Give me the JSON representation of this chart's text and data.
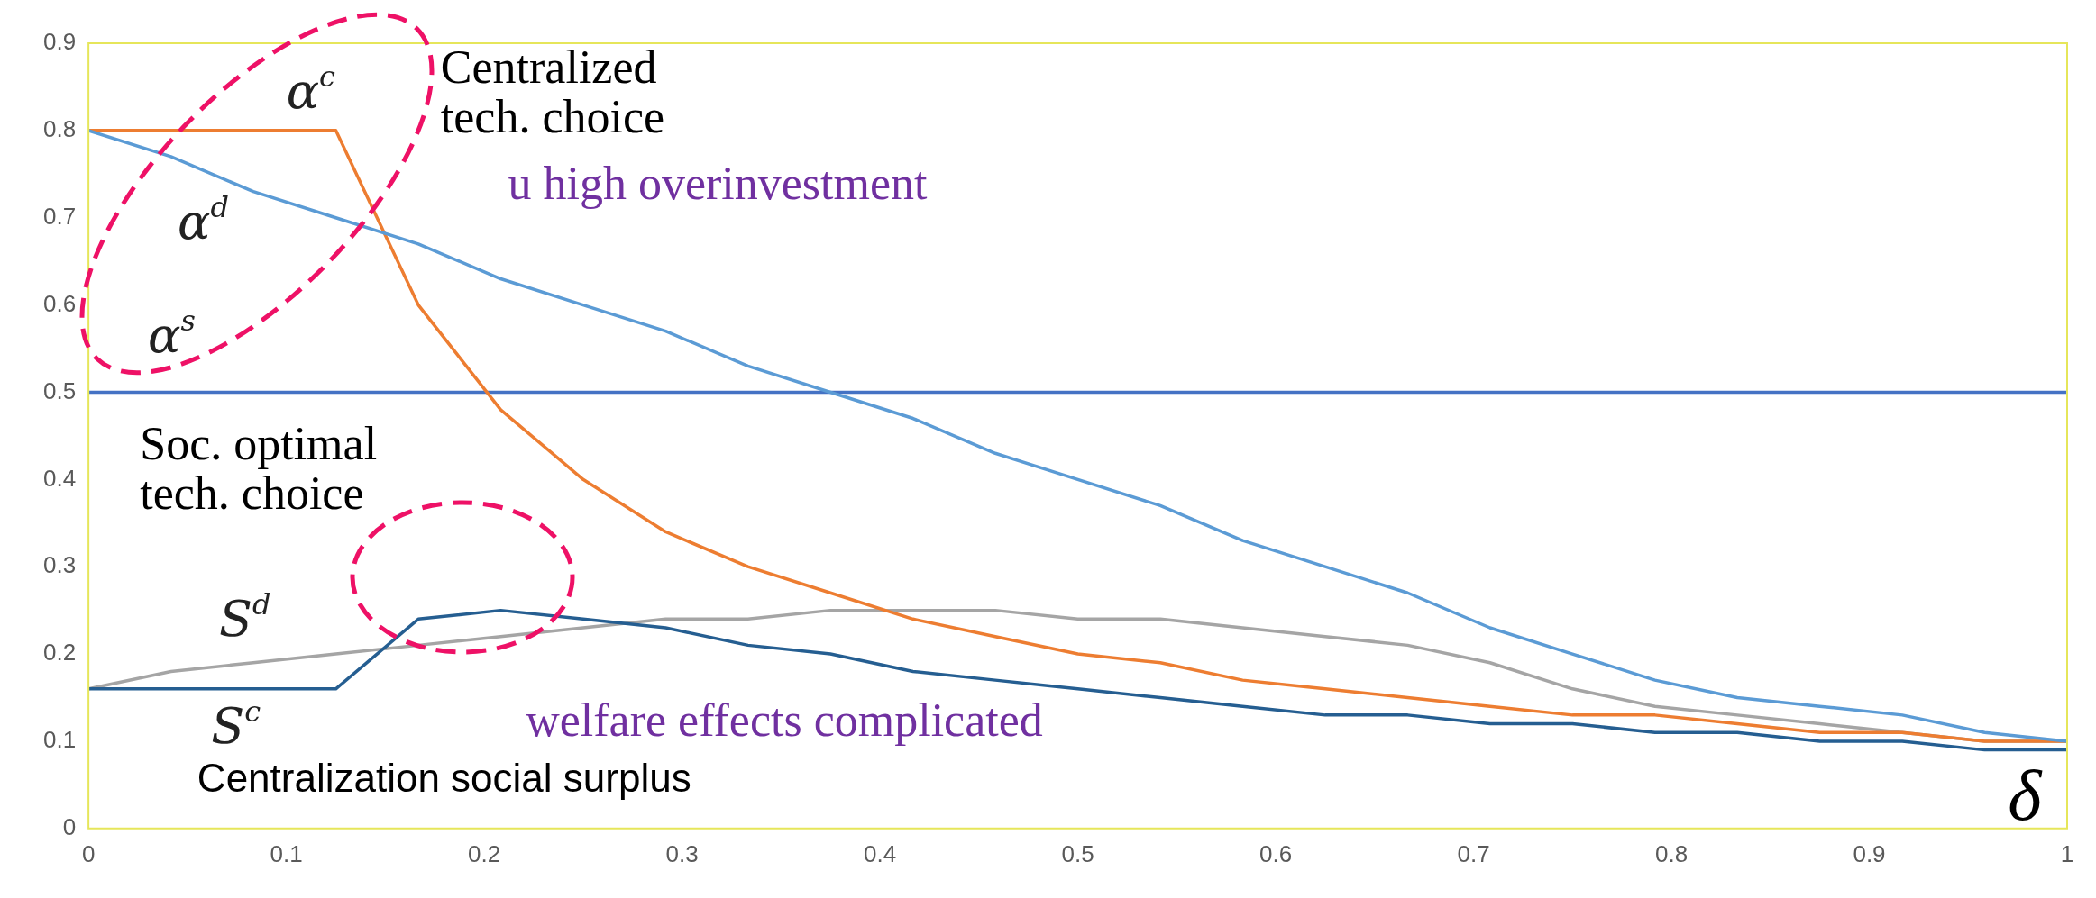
{
  "chart_data": {
    "type": "line",
    "x": [
      0,
      0.0417,
      0.0833,
      0.125,
      0.1667,
      0.2083,
      0.25,
      0.2917,
      0.3333,
      0.375,
      0.4167,
      0.4583,
      0.5,
      0.5417,
      0.5833,
      0.625,
      0.6667,
      0.7083,
      0.75,
      0.7917,
      0.8333,
      0.875,
      0.9167,
      0.9583,
      1
    ],
    "series": [
      {
        "color": "#5b9bd5",
        "values": [
          0.8,
          0.77,
          0.73,
          0.7,
          0.67,
          0.63,
          0.6,
          0.57,
          0.53,
          0.5,
          0.47,
          0.43,
          0.4,
          0.37,
          0.33,
          0.3,
          0.27,
          0.23,
          0.2,
          0.17,
          0.15,
          0.14,
          0.13,
          0.11,
          0.1
        ]
      },
      {
        "color": "#ed7d31",
        "values": [
          0.8,
          0.8,
          0.8,
          0.8,
          0.6,
          0.48,
          0.4,
          0.34,
          0.3,
          0.27,
          0.24,
          0.22,
          0.2,
          0.19,
          0.17,
          0.16,
          0.15,
          0.14,
          0.13,
          0.13,
          0.12,
          0.11,
          0.11,
          0.1,
          0.1
        ]
      },
      {
        "color": "#4472c4",
        "values": [
          0.5,
          0.5,
          0.5,
          0.5,
          0.5,
          0.5,
          0.5,
          0.5,
          0.5,
          0.5,
          0.5,
          0.5,
          0.5,
          0.5,
          0.5,
          0.5,
          0.5,
          0.5,
          0.5,
          0.5,
          0.5,
          0.5,
          0.5,
          0.5,
          0.5
        ]
      },
      {
        "color": "#255e91",
        "values": [
          0.16,
          0.16,
          0.16,
          0.16,
          0.24,
          0.25,
          0.24,
          0.23,
          0.21,
          0.2,
          0.18,
          0.17,
          0.16,
          0.15,
          0.14,
          0.13,
          0.13,
          0.12,
          0.12,
          0.11,
          0.11,
          0.1,
          0.1,
          0.09,
          0.09
        ]
      },
      {
        "color": "#a5a5a5",
        "values": [
          0.16,
          0.18,
          0.19,
          0.2,
          0.21,
          0.22,
          0.23,
          0.24,
          0.24,
          0.25,
          0.25,
          0.25,
          0.24,
          0.24,
          0.23,
          0.22,
          0.21,
          0.19,
          0.16,
          0.14,
          0.13,
          0.12,
          0.11,
          0.1,
          0.1
        ]
      }
    ],
    "xlim": [
      0,
      1
    ],
    "xticks": [
      0,
      0.1,
      0.2,
      0.3,
      0.4,
      0.5,
      0.6,
      0.7,
      0.8,
      0.9,
      1
    ],
    "ylim": [
      0,
      0.9
    ],
    "yticks": [
      0,
      0.1,
      0.2,
      0.3,
      0.4,
      0.5,
      0.6,
      0.7,
      0.8,
      0.9
    ],
    "grid": false,
    "legend": false,
    "marker": "none",
    "line_style": "solid",
    "annotations": [
      "Centralized\ntech. choice",
      "u high overinvestment",
      "Soc. optimal\ntech. choice",
      "welfare effects complicated",
      "Centralization social surplus",
      "δ",
      "α$^{c}$",
      "α$^{d}$",
      "α$^{s}$",
      "S$^{d}$",
      "S$^{c}$"
    ]
  }
}
